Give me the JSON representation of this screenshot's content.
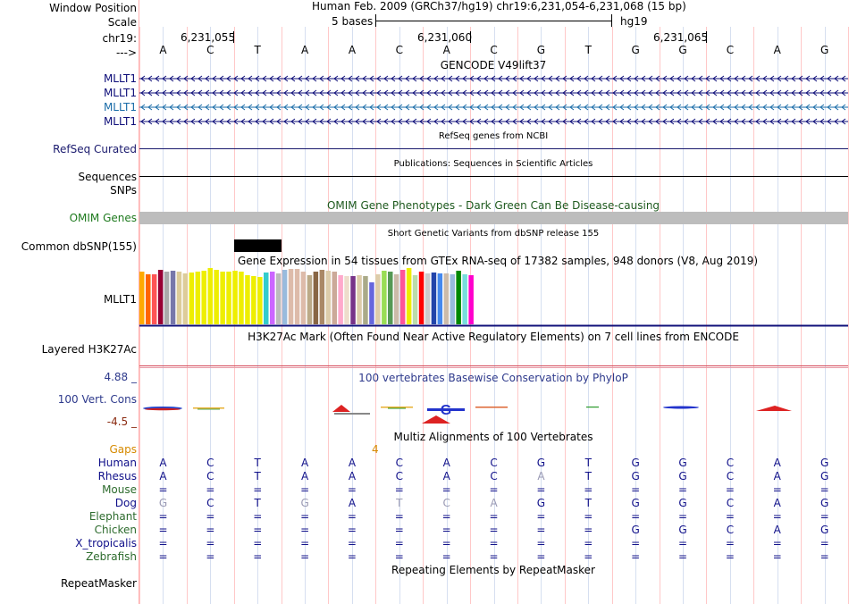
{
  "header": {
    "window_position_label": "Window Position",
    "assembly_position": "Human Feb. 2009 (GRCh37/hg19)   chr19:6,231,054-6,231,068 (15 bp)",
    "scale_label": "Scale",
    "scale_text": "5 bases",
    "scale_db": "hg19",
    "chrom_label": "chr19:",
    "ruler_ticks": [
      "6,231,055",
      "6,231,060",
      "6,231,065"
    ],
    "strand_label": "--->",
    "bases": [
      "A",
      "C",
      "T",
      "A",
      "A",
      "C",
      "A",
      "C",
      "G",
      "T",
      "G",
      "G",
      "C",
      "A",
      "G"
    ]
  },
  "gencode": {
    "title": "GENCODE V49lift37",
    "transcripts": [
      {
        "name": "MLLT1",
        "color": "#0c0c78"
      },
      {
        "name": "MLLT1",
        "color": "#0c0c78"
      },
      {
        "name": "MLLT1",
        "color": "#1a6ca8"
      },
      {
        "name": "MLLT1",
        "color": "#0c0c78"
      }
    ]
  },
  "refseq": {
    "title": "RefSeq genes from NCBI",
    "label": "RefSeq Curated"
  },
  "publications": {
    "title": "Publications: Sequences in Scientific Articles",
    "label": "Sequences"
  },
  "snps_label": "SNPs",
  "omim": {
    "title": "OMIM Gene Phenotypes - Dark Green Can Be Disease-causing",
    "label": "OMIM Genes",
    "title_color": "#1e5a1e"
  },
  "dbsnp": {
    "title": "Short Genetic Variants from dbSNP release 155",
    "label": "Common dbSNP(155)"
  },
  "gtex": {
    "title": "Gene Expression in 54 tissues from GTEx RNA-seq of 17382 samples, 948 donors (V8, Aug 2019)",
    "label": "MLLT1",
    "tissues": [
      {
        "color": "#FFAA00",
        "level": 0.93
      },
      {
        "color": "#FF6600",
        "level": 0.89
      },
      {
        "color": "#FF5555",
        "level": 0.89
      },
      {
        "color": "#990033",
        "level": 0.97
      },
      {
        "color": "#AAAAAA",
        "level": 0.94
      },
      {
        "color": "#7777AA",
        "level": 0.95
      },
      {
        "color": "#DDCC99",
        "level": 0.94
      },
      {
        "color": "#DDCC99",
        "level": 0.91
      },
      {
        "color": "#EEEE00",
        "level": 0.92
      },
      {
        "color": "#EEEE00",
        "level": 0.93
      },
      {
        "color": "#EEEE00",
        "level": 0.96
      },
      {
        "color": "#EEEE00",
        "level": 1.0
      },
      {
        "color": "#EEEE00",
        "level": 0.97
      },
      {
        "color": "#EEEE00",
        "level": 0.94
      },
      {
        "color": "#EEEE00",
        "level": 0.93
      },
      {
        "color": "#EEEE00",
        "level": 0.95
      },
      {
        "color": "#EEEE00",
        "level": 0.94
      },
      {
        "color": "#EEEE00",
        "level": 0.87
      },
      {
        "color": "#EEEE00",
        "level": 0.85
      },
      {
        "color": "#EEEE00",
        "level": 0.84
      },
      {
        "color": "#33CCCC",
        "level": 0.92
      },
      {
        "color": "#CC66FF",
        "level": 0.94
      },
      {
        "color": "#BBBBBB",
        "level": 0.91
      },
      {
        "color": "#99BBDD",
        "level": 0.97
      },
      {
        "color": "#DDBBAA",
        "level": 0.98
      },
      {
        "color": "#DDBBAA",
        "level": 0.98
      },
      {
        "color": "#DDBBAA",
        "level": 0.93
      },
      {
        "color": "#BBAA88",
        "level": 0.88
      },
      {
        "color": "#886644",
        "level": 0.93
      },
      {
        "color": "#AA8866",
        "level": 0.97
      },
      {
        "color": "#DDCCAA",
        "level": 0.96
      },
      {
        "color": "#CCAA99",
        "level": 0.93
      },
      {
        "color": "#FFAACC",
        "level": 0.87
      },
      {
        "color": "#EEDDCC",
        "level": 0.86
      },
      {
        "color": "#773388",
        "level": 0.86
      },
      {
        "color": "#DDCCAA",
        "level": 0.87
      },
      {
        "color": "#AAAA88",
        "level": 0.86
      },
      {
        "color": "#6666DD",
        "level": 0.74
      },
      {
        "color": "#DDCCAA",
        "level": 0.89
      },
      {
        "color": "#99DD55",
        "level": 0.96
      },
      {
        "color": "#559955",
        "level": 0.93
      },
      {
        "color": "#CCBBAA",
        "level": 0.89
      },
      {
        "color": "#FF5599",
        "level": 0.97
      },
      {
        "color": "#EEEE00",
        "level": 1.0
      },
      {
        "color": "#BBDDAA",
        "level": 0.87
      },
      {
        "color": "#FF0000",
        "level": 0.94
      },
      {
        "color": "#CCCCCC",
        "level": 0.9
      },
      {
        "color": "#2244AA",
        "level": 0.92
      },
      {
        "color": "#4488EE",
        "level": 0.91
      },
      {
        "color": "#CCBBAA",
        "level": 0.91
      },
      {
        "color": "#99BBDD",
        "level": 0.89
      },
      {
        "color": "#008800",
        "level": 0.96
      },
      {
        "color": "#77DDDD",
        "level": 0.89
      },
      {
        "color": "#FF00CC",
        "level": 0.87
      }
    ]
  },
  "h3k27ac": {
    "title": "H3K27Ac Mark (Often Found Near Active Regulatory Elements) on 7 cell lines from ENCODE",
    "label": "Layered H3K27Ac"
  },
  "phylop": {
    "title": "100 vertebrates Basewise Conservation by PhyloP",
    "label": "100 Vert. Cons",
    "max_label": "4.88 _",
    "min_label": "-4.5 _",
    "title_color": "#2e3a8c"
  },
  "multiz": {
    "title": "Multiz Alignments of 100 Vertebrates",
    "gaps_label": "Gaps",
    "gaps_value": "4",
    "species": [
      {
        "name": "Human",
        "color": "#10108a",
        "bases": [
          "A",
          "C",
          "T",
          "A",
          "A",
          "C",
          "A",
          "C",
          "G",
          "T",
          "G",
          "G",
          "C",
          "A",
          "G"
        ]
      },
      {
        "name": "Rhesus",
        "color": "#10108a",
        "bases": [
          "A",
          "C",
          "T",
          "A",
          "A",
          "C",
          "A",
          "C",
          "A",
          "T",
          "G",
          "G",
          "C",
          "A",
          "G"
        ]
      },
      {
        "name": "Mouse",
        "color": "#2d6b2d",
        "bases": [
          "=",
          "=",
          "=",
          "=",
          "=",
          "=",
          "=",
          "=",
          "=",
          "=",
          "=",
          "=",
          "=",
          "=",
          "="
        ]
      },
      {
        "name": "Dog",
        "color": "#10108a",
        "bases": [
          "G",
          "C",
          "T",
          "G",
          "A",
          "T",
          "C",
          "A",
          "G",
          "T",
          "G",
          "G",
          "C",
          "A",
          "G"
        ]
      },
      {
        "name": "Elephant",
        "color": "#2d6b2d",
        "bases": [
          "=",
          "=",
          "=",
          "=",
          "=",
          "=",
          "=",
          "=",
          "=",
          "=",
          "=",
          "=",
          "=",
          "=",
          "="
        ]
      },
      {
        "name": "Chicken",
        "color": "#2d6b2d",
        "bases": [
          "=",
          "=",
          "=",
          "=",
          "=",
          "=",
          "=",
          "=",
          "=",
          "=",
          "G",
          "G",
          "C",
          "A",
          "G"
        ]
      },
      {
        "name": "X_tropicalis",
        "color": "#10108a",
        "bases": [
          "=",
          "=",
          "=",
          "=",
          "=",
          "=",
          "=",
          "=",
          "=",
          "=",
          "=",
          "=",
          "=",
          "=",
          "="
        ]
      },
      {
        "name": "Zebrafish",
        "color": "#2d6b2d",
        "bases": [
          "=",
          "=",
          "=",
          "=",
          "=",
          "=",
          "=",
          "=",
          "=",
          "=",
          "=",
          "=",
          "=",
          "=",
          "="
        ]
      }
    ],
    "faded_bases": {
      "Rhesus": [
        8
      ],
      "Dog": [
        0,
        3,
        5,
        6,
        7
      ]
    }
  },
  "repeatmasker": {
    "title": "Repeating Elements by RepeatMasker",
    "label": "RepeatMasker"
  }
}
